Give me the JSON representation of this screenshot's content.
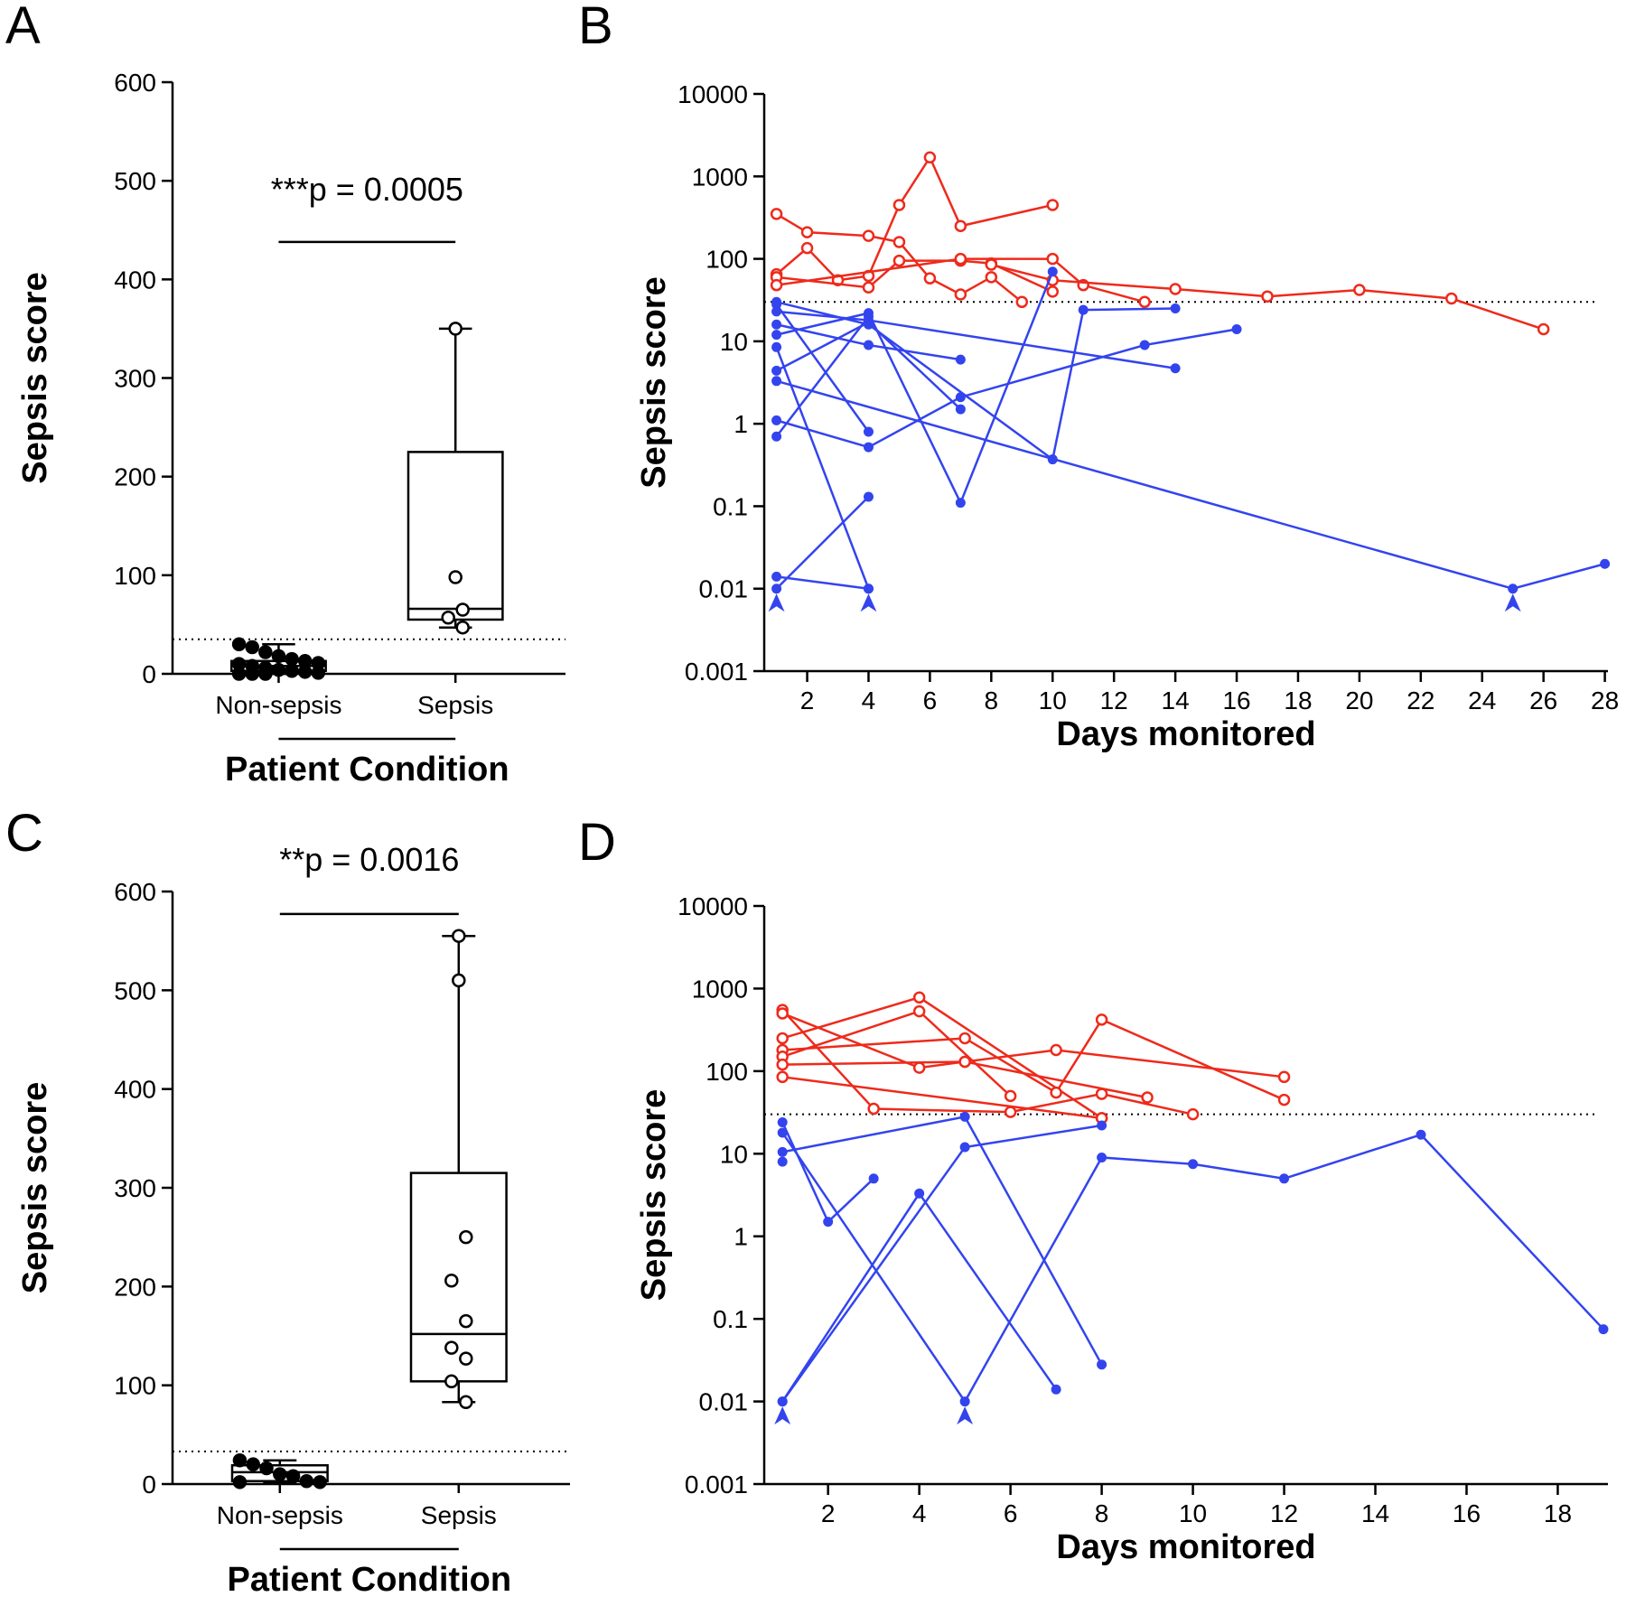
{
  "chart_data": [
    {
      "type": "box",
      "panel": "A",
      "annotation": "***p = 0.0005",
      "ylabel": "Sepsis score",
      "xlabel": "Patient Condition",
      "categories": [
        "Non-sepsis",
        "Sepsis"
      ],
      "ylim": [
        0,
        600
      ],
      "yticks": [
        0,
        100,
        200,
        300,
        400,
        500,
        600
      ],
      "threshold": 35,
      "boxes": [
        {
          "min": 0,
          "q1": 3,
          "median": 8,
          "q3": 13,
          "max": 30,
          "marker": "filled",
          "points": [
            30,
            27,
            22,
            18,
            15,
            13,
            11,
            10,
            8,
            6,
            4,
            3,
            2,
            1,
            0,
            0,
            0
          ]
        },
        {
          "min": 47,
          "q1": 55,
          "median": 66,
          "q3": 225,
          "max": 350,
          "marker": "open",
          "points": [
            350,
            98,
            65,
            57,
            47
          ]
        }
      ]
    },
    {
      "type": "line",
      "panel": "B",
      "ylabel": "Sepsis score",
      "xlabel": "Days monitored",
      "log_y": true,
      "xlim": [
        0.6,
        28.1
      ],
      "xticks": [
        2,
        4,
        6,
        8,
        10,
        12,
        14,
        16,
        18,
        20,
        22,
        24,
        26,
        28
      ],
      "ylim": [
        0.001,
        10000
      ],
      "yticks": [
        0.001,
        0.01,
        0.1,
        1,
        10,
        100,
        1000,
        10000
      ],
      "threshold": 30,
      "arrow_x": [
        1,
        4,
        25
      ],
      "series": [
        {
          "color": "#ee2a1b",
          "marker": "open",
          "x": [
            1,
            2,
            4,
            5,
            6,
            7,
            8,
            9
          ],
          "values": [
            350,
            210,
            190,
            160,
            58,
            37,
            60,
            30
          ]
        },
        {
          "color": "#ee2a1b",
          "marker": "open",
          "x": [
            1,
            2,
            3,
            4,
            5,
            6,
            7,
            10
          ],
          "values": [
            65,
            135,
            55,
            62,
            450,
            1700,
            250,
            450
          ]
        },
        {
          "color": "#ee2a1b",
          "marker": "open",
          "x": [
            1,
            4,
            5,
            7,
            8,
            10
          ],
          "values": [
            60,
            45,
            95,
            95,
            88,
            40
          ]
        },
        {
          "color": "#ee2a1b",
          "marker": "open",
          "x": [
            1,
            7,
            10,
            11,
            13
          ],
          "values": [
            48,
            100,
            100,
            48,
            30
          ]
        },
        {
          "color": "#ee2a1b",
          "marker": "open",
          "x": [
            8,
            10,
            14,
            17,
            20,
            23,
            26
          ],
          "values": [
            85,
            55,
            43,
            35,
            42,
            33,
            14
          ]
        },
        {
          "color": "#3344ee",
          "marker": "filled",
          "x": [
            1,
            25,
            28
          ],
          "values": [
            3.3,
            0.01,
            0.02
          ]
        },
        {
          "color": "#3344ee",
          "marker": "filled",
          "x": [
            1,
            4
          ],
          "values": [
            28,
            0.8
          ]
        },
        {
          "color": "#3344ee",
          "marker": "filled",
          "x": [
            1,
            4,
            14
          ],
          "values": [
            23,
            18,
            4.7
          ]
        },
        {
          "color": "#3344ee",
          "marker": "filled",
          "x": [
            1,
            4,
            7
          ],
          "values": [
            16,
            9,
            6
          ]
        },
        {
          "color": "#3344ee",
          "marker": "filled",
          "x": [
            1,
            4,
            7,
            10
          ],
          "values": [
            12,
            22,
            0.11,
            70
          ]
        },
        {
          "color": "#3344ee",
          "marker": "filled",
          "x": [
            1,
            4,
            10,
            11,
            14
          ],
          "values": [
            30,
            16,
            0.37,
            24,
            25
          ]
        },
        {
          "color": "#3344ee",
          "marker": "filled",
          "x": [
            1,
            4,
            7
          ],
          "values": [
            4.4,
            17,
            1.5
          ]
        },
        {
          "color": "#3344ee",
          "marker": "filled",
          "x": [
            1,
            4,
            7,
            13,
            16
          ],
          "values": [
            1.1,
            0.52,
            2.1,
            9,
            14
          ]
        },
        {
          "color": "#3344ee",
          "marker": "filled",
          "x": [
            1,
            4
          ],
          "values": [
            0.7,
            20
          ]
        },
        {
          "color": "#3344ee",
          "marker": "filled",
          "x": [
            1,
            4
          ],
          "values": [
            0.01,
            0.13
          ]
        },
        {
          "color": "#3344ee",
          "marker": "filled",
          "x": [
            1,
            4
          ],
          "values": [
            0.014,
            0.01
          ]
        },
        {
          "color": "#3344ee",
          "marker": "filled",
          "x": [
            1,
            4
          ],
          "values": [
            8.5,
            0.01
          ]
        }
      ]
    },
    {
      "type": "box",
      "panel": "C",
      "annotation": "**p = 0.0016",
      "ylabel": "Sepsis score",
      "xlabel": "Patient Condition",
      "categories": [
        "Non-sepsis",
        "Sepsis"
      ],
      "ylim": [
        0,
        600
      ],
      "yticks": [
        0,
        100,
        200,
        300,
        400,
        500,
        600
      ],
      "threshold": 33,
      "boxes": [
        {
          "min": 2,
          "q1": 3,
          "median": 12,
          "q3": 19,
          "max": 24,
          "marker": "filled",
          "points": [
            24,
            20,
            16,
            10,
            8,
            3,
            2,
            2
          ]
        },
        {
          "min": 83,
          "q1": 104,
          "median": 152,
          "q3": 315,
          "max": 555,
          "marker": "open",
          "points": [
            555,
            510,
            250,
            206,
            165,
            138,
            127,
            104,
            83
          ]
        }
      ]
    },
    {
      "type": "line",
      "panel": "D",
      "ylabel": "Sepsis score",
      "xlabel": "Days monitored",
      "log_y": true,
      "xlim": [
        0.6,
        19.1
      ],
      "xticks": [
        2,
        4,
        6,
        8,
        10,
        12,
        14,
        16,
        18
      ],
      "ylim": [
        0.001,
        10000
      ],
      "yticks": [
        0.001,
        0.01,
        0.1,
        1,
        10,
        100,
        1000,
        10000
      ],
      "threshold": 30,
      "arrow_x": [
        1,
        5
      ],
      "series": [
        {
          "color": "#ee2a1b",
          "marker": "open",
          "x": [
            1,
            3,
            6,
            8,
            10
          ],
          "values": [
            550,
            35,
            32,
            53,
            30
          ]
        },
        {
          "color": "#ee2a1b",
          "marker": "open",
          "x": [
            1,
            4,
            5,
            7,
            12
          ],
          "values": [
            500,
            110,
            130,
            180,
            85
          ]
        },
        {
          "color": "#ee2a1b",
          "marker": "open",
          "x": [
            1,
            4,
            8
          ],
          "values": [
            250,
            780,
            27
          ]
        },
        {
          "color": "#ee2a1b",
          "marker": "open",
          "x": [
            1,
            5,
            7,
            8,
            12
          ],
          "values": [
            180,
            250,
            55,
            420,
            45
          ]
        },
        {
          "color": "#ee2a1b",
          "marker": "open",
          "x": [
            1,
            4,
            6
          ],
          "values": [
            150,
            530,
            50
          ]
        },
        {
          "color": "#ee2a1b",
          "marker": "open",
          "x": [
            1,
            5,
            9
          ],
          "values": [
            120,
            130,
            48
          ]
        },
        {
          "color": "#ee2a1b",
          "marker": "open",
          "x": [
            1,
            8
          ],
          "values": [
            85,
            27
          ]
        },
        {
          "color": "#3344ee",
          "marker": "filled",
          "x": [
            1,
            2,
            3
          ],
          "values": [
            24,
            1.5,
            5
          ]
        },
        {
          "color": "#3344ee",
          "marker": "filled",
          "x": [
            1,
            5,
            8,
            10,
            12,
            15,
            19
          ],
          "values": [
            18,
            0.01,
            9,
            7.5,
            5,
            17,
            0.075
          ]
        },
        {
          "color": "#3344ee",
          "marker": "filled",
          "x": [
            1,
            5,
            8
          ],
          "values": [
            10.5,
            28,
            0.028
          ]
        },
        {
          "color": "#3344ee",
          "marker": "filled",
          "x": [
            1,
            5,
            8
          ],
          "values": [
            0.01,
            12,
            22
          ]
        },
        {
          "color": "#3344ee",
          "marker": "filled",
          "x": [
            1,
            4,
            7
          ],
          "values": [
            0.01,
            3.3,
            0.014
          ]
        },
        {
          "color": "#3344ee",
          "marker": "filled",
          "x": [
            1
          ],
          "values": [
            8
          ]
        }
      ]
    }
  ]
}
